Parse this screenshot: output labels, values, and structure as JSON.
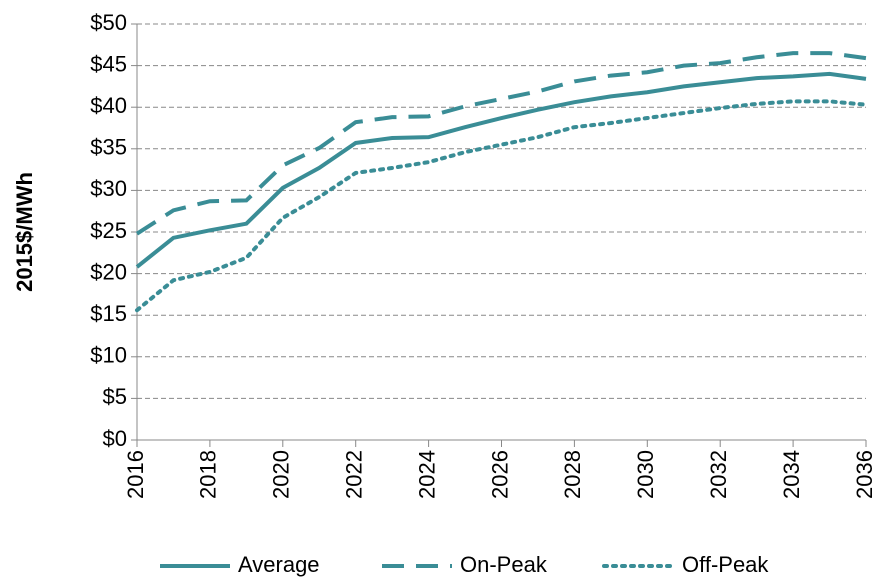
{
  "chart_data": {
    "type": "line",
    "y_label": "2015$/MWh",
    "x": [
      2016,
      2017,
      2018,
      2019,
      2020,
      2021,
      2022,
      2023,
      2024,
      2025,
      2026,
      2027,
      2028,
      2029,
      2030,
      2031,
      2032,
      2033,
      2034,
      2035,
      2036
    ],
    "series": [
      {
        "name": "Average",
        "color": "#3a8d96",
        "style": "solid",
        "values": [
          20.8,
          24.3,
          25.2,
          26.0,
          30.3,
          32.7,
          35.7,
          36.3,
          36.4,
          37.6,
          38.7,
          39.7,
          40.6,
          41.3,
          41.8,
          42.5,
          43.0,
          43.5,
          43.7,
          44.0,
          43.4
        ]
      },
      {
        "name": "On-Peak",
        "color": "#3a8d96",
        "style": "dashed",
        "values": [
          24.8,
          27.6,
          28.7,
          28.8,
          33.0,
          35.1,
          38.2,
          38.8,
          38.9,
          40.1,
          41.0,
          41.9,
          43.1,
          43.8,
          44.2,
          45.0,
          45.3,
          46.0,
          46.5,
          46.5,
          45.9
        ]
      },
      {
        "name": "Off-Peak",
        "color": "#3a8d96",
        "style": "dotted",
        "values": [
          15.6,
          19.2,
          20.2,
          21.9,
          26.7,
          29.2,
          32.1,
          32.7,
          33.4,
          34.6,
          35.5,
          36.4,
          37.6,
          38.1,
          38.7,
          39.3,
          39.9,
          40.4,
          40.7,
          40.7,
          40.3
        ]
      }
    ],
    "xlim": [
      2016,
      2036
    ],
    "xticks": [
      2016,
      2018,
      2020,
      2022,
      2024,
      2026,
      2028,
      2030,
      2032,
      2034,
      2036
    ],
    "ylim": [
      0,
      50
    ],
    "yticks": [
      {
        "value": 0,
        "label": "$0"
      },
      {
        "value": 5,
        "label": "$5"
      },
      {
        "value": 10,
        "label": "$10"
      },
      {
        "value": 15,
        "label": "$15"
      },
      {
        "value": 20,
        "label": "$20"
      },
      {
        "value": 25,
        "label": "$25"
      },
      {
        "value": 30,
        "label": "$30"
      },
      {
        "value": 35,
        "label": "$35"
      },
      {
        "value": 40,
        "label": "$40"
      },
      {
        "value": 45,
        "label": "$45"
      },
      {
        "value": 50,
        "label": "$50"
      }
    ],
    "grid": true,
    "legend": "bottom"
  }
}
